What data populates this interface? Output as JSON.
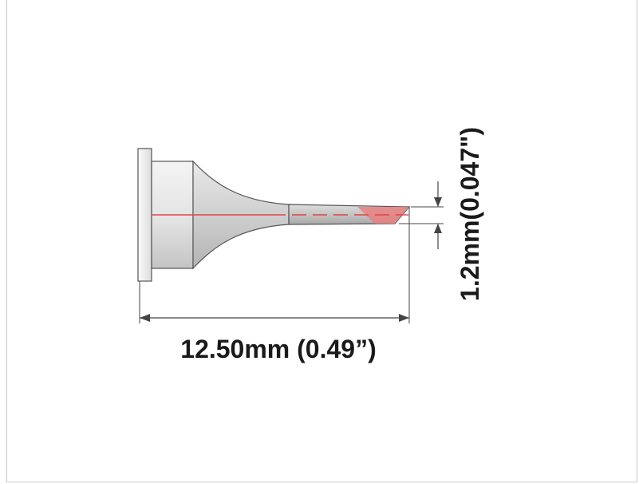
{
  "diagram": {
    "length_label": "12.50mm (0.49”)",
    "width_label": "1.2mm(0.047\")",
    "colors": {
      "outline": "#444444",
      "fill_light": "#e6e6e6",
      "fill_dark": "#bdbdbd",
      "centerline": "#e04545",
      "tip": "#e88080"
    }
  }
}
